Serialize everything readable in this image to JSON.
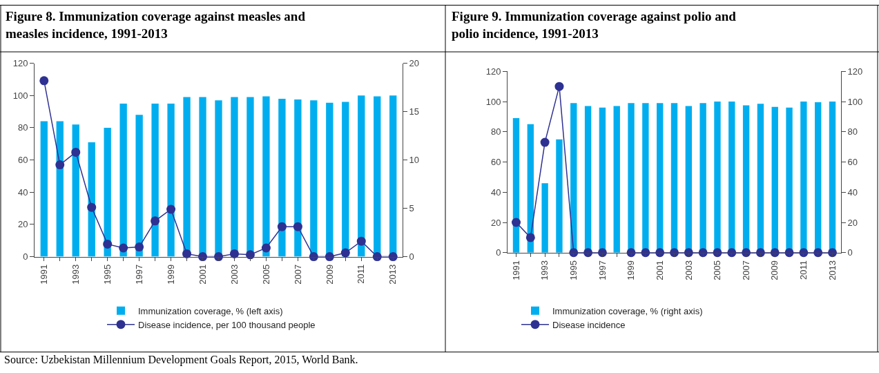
{
  "chart_data": [
    {
      "type": "bar",
      "title": "Figure 8. Immunization coverage against measles and measles incidence, 1991-2013",
      "categories": [
        "1991",
        null,
        "1993",
        null,
        "1995",
        null,
        "1997",
        null,
        "1999",
        null,
        "2001",
        null,
        "2003",
        null,
        "2005",
        null,
        "2007",
        null,
        "2009",
        null,
        "2011",
        null,
        "2013"
      ],
      "series": [
        {
          "name": "Immunization coverage, % (left axis)",
          "color": "#00aeef",
          "values": [
            84,
            84,
            82,
            71,
            80,
            95,
            88,
            95,
            95,
            99,
            99,
            97,
            99,
            99,
            99.5,
            98,
            97.5,
            97,
            95.5,
            96,
            100,
            99.5,
            100
          ]
        },
        {
          "type": "line",
          "axis": "y2",
          "name": "Disease incidence, per 100 thousand people",
          "color": "#2e3192",
          "values": [
            18.2,
            9.5,
            10.8,
            5.1,
            1.3,
            0.9,
            1.0,
            3.7,
            4.9,
            0.3,
            0,
            0,
            0.3,
            0.2,
            0.9,
            3.1,
            3.1,
            0,
            0,
            0.4,
            1.6,
            0,
            0
          ]
        }
      ],
      "ylim": [
        0,
        120
      ],
      "yticks": [
        0,
        20,
        40,
        60,
        80,
        100,
        120
      ],
      "y2lim": [
        0,
        20
      ],
      "y2ticks": [
        0,
        5,
        10,
        15,
        20
      ],
      "marker": "circle",
      "line_style": "solid",
      "legend": "bottom",
      "annotations": [
        "Source: Uzbekistan Millennium Development Goals Report, 2015, World Bank."
      ]
    },
    {
      "type": "bar",
      "title": "Figure 9. Immunization coverage against polio and polio incidence, 1991-2013",
      "categories": [
        "1991",
        null,
        "1993",
        null,
        "1995",
        null,
        "1997",
        null,
        "1999",
        null,
        "2001",
        null,
        "2003",
        null,
        "2005",
        null,
        "2007",
        null,
        "2009",
        null,
        "2011",
        null,
        "2013"
      ],
      "series": [
        {
          "axis": "y2",
          "name": "Immunization coverage, % (right axis)",
          "color": "#00aeef",
          "values": [
            89,
            85,
            46,
            75,
            99,
            97,
            96,
            97,
            99,
            99,
            99,
            99,
            97,
            99,
            100,
            100,
            97.5,
            98.5,
            96.5,
            96,
            100,
            99.5,
            100
          ]
        },
        {
          "type": "line",
          "name": "Disease incidence",
          "color": "#2e3192",
          "values": [
            20,
            10,
            73,
            110,
            0,
            0,
            0,
            null,
            0,
            0,
            0,
            0,
            0,
            0,
            0,
            0,
            0,
            0,
            0,
            0,
            0,
            0,
            0
          ]
        }
      ],
      "ylim": [
        0,
        120
      ],
      "yticks": [
        0,
        20,
        40,
        60,
        80,
        100,
        120
      ],
      "y2lim": [
        0,
        120
      ],
      "y2ticks": [
        0,
        20,
        40,
        60,
        80,
        100,
        120
      ],
      "marker": "circle",
      "line_style": "solid",
      "legend": "bottom"
    }
  ]
}
